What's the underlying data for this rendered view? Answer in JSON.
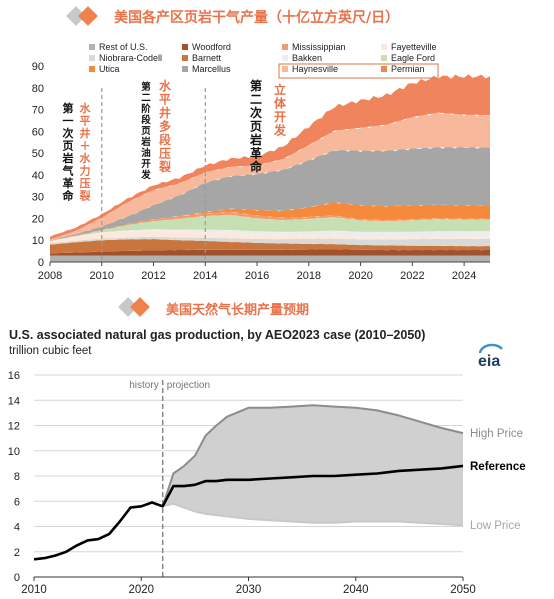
{
  "banner1": {
    "text": "美国各产区页岩干气产量（十亿立方英尺/日）",
    "color_gray": "#c8c8c8",
    "color_orange": "#f0814c"
  },
  "banner2": {
    "text": "美国天然气长期产量预期"
  },
  "chart1_notes": [
    {
      "text": "第一次页岩气革命",
      "color": "#111111"
    },
    {
      "text": "水平井＋水力压裂",
      "color": "#e8734a"
    },
    {
      "text": "第二阶段页岩油开发",
      "color": "#111111"
    },
    {
      "text": "水平井多段压裂",
      "color": "#e8734a"
    },
    {
      "text": "第二次页岩革命",
      "color": "#111111"
    },
    {
      "text": "立体开发",
      "color": "#e8734a"
    }
  ],
  "chart2": {
    "title": "U.S. associated natural gas production, by AEO2023 case (2010–2050)",
    "unit": "trillion cubic feet",
    "logo": "eia",
    "history_label": "history",
    "projection_label": "projection",
    "divider_x": 2022
  },
  "chart_data": [
    {
      "type": "area",
      "title": "美国各产区页岩干气产量（十亿立方英尺/日）",
      "xlim": [
        2008,
        2025
      ],
      "ylim": [
        0,
        90
      ],
      "x_ticks": [
        2008,
        2010,
        2012,
        2014,
        2016,
        2018,
        2020,
        2022,
        2024
      ],
      "y_ticks": [
        0,
        10,
        20,
        30,
        40,
        50,
        60,
        70,
        80,
        90
      ],
      "grid": false,
      "legend_position": "top",
      "legend": [
        {
          "name": "Rest of U.S.",
          "color": "#b2b2b2"
        },
        {
          "name": "Woodford",
          "color": "#a0522d"
        },
        {
          "name": "Mississippian",
          "color": "#f29a70"
        },
        {
          "name": "Fayetteville",
          "color": "#fde9dc"
        },
        {
          "name": "Niobrara-Codell",
          "color": "#d9d9d9"
        },
        {
          "name": "Barnett",
          "color": "#c9753d"
        },
        {
          "name": "Bakken",
          "color": "#ededed"
        },
        {
          "name": "Eagle Ford",
          "color": "#c6e0b4"
        },
        {
          "name": "Utica",
          "color": "#f58a3c"
        },
        {
          "name": "Marcellus",
          "color": "#a6a6a6"
        },
        {
          "name": "Haynesville",
          "color": "#f8b89b"
        },
        {
          "name": "Permian",
          "color": "#ef845d"
        }
      ],
      "legend_boxed": [
        "Haynesville",
        "Permian"
      ],
      "x": [
        2008,
        2009,
        2010,
        2011,
        2012,
        2013,
        2014,
        2015,
        2016,
        2017,
        2018,
        2019,
        2020,
        2021,
        2022,
        2023,
        2024,
        2025
      ],
      "series": [
        {
          "name": "Rest of U.S.",
          "values": [
            3,
            3,
            3,
            3,
            3,
            3,
            3,
            3,
            3,
            3,
            3,
            3,
            3,
            3,
            3,
            3,
            3,
            3
          ]
        },
        {
          "name": "Woodford",
          "values": [
            1,
            1.3,
            1.8,
            2.1,
            2.4,
            2.5,
            2.6,
            2.6,
            2.6,
            2.6,
            2.7,
            2.8,
            2.6,
            2.5,
            2.5,
            2.5,
            2.5,
            2.5
          ]
        },
        {
          "name": "Barnett",
          "values": [
            4,
            4.8,
            5.2,
            5.3,
            5.1,
            4.5,
            4.1,
            3.6,
            3.2,
            2.9,
            2.6,
            2.4,
            2.2,
            2.1,
            2.0,
            1.9,
            1.8,
            1.8
          ]
        },
        {
          "name": "Niobrara-Codell",
          "values": [
            0.6,
            0.7,
            0.8,
            0.9,
            1.1,
            1.3,
            1.5,
            1.7,
            1.8,
            2.0,
            2.3,
            2.6,
            2.6,
            2.8,
            3.0,
            3.2,
            3.3,
            3.3
          ]
        },
        {
          "name": "Fayetteville",
          "values": [
            1.0,
            1.8,
            2.5,
            2.8,
            2.8,
            2.7,
            2.5,
            2.3,
            2.0,
            1.7,
            1.5,
            1.3,
            1.1,
            1.0,
            0.9,
            0.9,
            0.8,
            0.8
          ]
        },
        {
          "name": "Bakken",
          "values": [
            0.1,
            0.2,
            0.3,
            0.4,
            0.6,
            0.9,
            1.2,
            1.5,
            1.5,
            1.6,
            1.9,
            2.3,
            2.3,
            2.4,
            2.5,
            2.6,
            2.7,
            2.7
          ]
        },
        {
          "name": "Eagle Ford",
          "values": [
            0,
            0.2,
            0.9,
            2.5,
            3.8,
            5.0,
            6.2,
            6.9,
            6.0,
            5.5,
            5.8,
            6.2,
            5.3,
            5.0,
            5.3,
            5.5,
            5.4,
            5.4
          ]
        },
        {
          "name": "Mississippian",
          "values": [
            0.1,
            0.2,
            0.3,
            0.5,
            0.8,
            1.1,
            1.3,
            1.4,
            1.2,
            1.0,
            0.9,
            0.8,
            0.6,
            0.5,
            0.5,
            0.4,
            0.4,
            0.4
          ]
        },
        {
          "name": "Utica",
          "values": [
            0,
            0,
            0,
            0,
            0,
            0.1,
            0.5,
            1.5,
            2.6,
            3.2,
            4.5,
            6.0,
            6.4,
            6.3,
            6.4,
            6.3,
            6.2,
            6.1
          ]
        },
        {
          "name": "Marcellus",
          "values": [
            0.2,
            0.6,
            1.5,
            3.4,
            6.5,
            9.5,
            13.5,
            15.0,
            16.5,
            18.8,
            21.5,
            24.0,
            25.0,
            25.5,
            26.0,
            26.3,
            26.6,
            26.5
          ]
        },
        {
          "name": "Haynesville",
          "values": [
            0.3,
            1.5,
            4.0,
            6.5,
            7.0,
            5.5,
            4.8,
            4.3,
            4.0,
            5.0,
            7.0,
            9.0,
            10.5,
            12.0,
            14.5,
            16.0,
            15.0,
            15.0
          ]
        },
        {
          "name": "Permian",
          "values": [
            1.4,
            1.5,
            1.6,
            1.7,
            2.1,
            2.5,
            3.1,
            3.7,
            4.1,
            5.7,
            8.5,
            11.0,
            12.5,
            13.5,
            15.5,
            16.5,
            17.5,
            17.8
          ]
        }
      ],
      "dashed_markers_x": [
        2010,
        2014
      ],
      "annotations": [
        "第一次页岩气革命",
        "水平井＋水力压裂",
        "第二阶段页岩油开发",
        "水平井多段压裂",
        "第二次页岩革命",
        "立体开发"
      ]
    },
    {
      "type": "line",
      "title": "U.S. associated natural gas production, by AEO2023 case (2010–2050)",
      "ylabel": "trillion cubic feet",
      "xlim": [
        2010,
        2050
      ],
      "ylim": [
        0,
        16
      ],
      "x_ticks": [
        2010,
        2020,
        2030,
        2040,
        2050
      ],
      "y_ticks": [
        0,
        2,
        4,
        6,
        8,
        10,
        12,
        14,
        16
      ],
      "grid": true,
      "series": [
        {
          "name": "Reference",
          "x": [
            2010,
            2011,
            2012,
            2013,
            2014,
            2015,
            2016,
            2017,
            2018,
            2019,
            2020,
            2021,
            2022,
            2023,
            2024,
            2025,
            2026,
            2027,
            2028,
            2030,
            2032,
            2034,
            2036,
            2038,
            2040,
            2042,
            2044,
            2046,
            2048,
            2050
          ],
          "values": [
            1.4,
            1.5,
            1.7,
            2.0,
            2.5,
            2.9,
            3.0,
            3.4,
            4.4,
            5.5,
            5.6,
            5.9,
            5.6,
            7.2,
            7.2,
            7.3,
            7.6,
            7.6,
            7.7,
            7.7,
            7.8,
            7.9,
            8.0,
            8.0,
            8.1,
            8.2,
            8.4,
            8.5,
            8.6,
            8.8
          ]
        },
        {
          "name": "High Price",
          "x": [
            2022,
            2023,
            2024,
            2025,
            2026,
            2027,
            2028,
            2030,
            2032,
            2034,
            2036,
            2038,
            2040,
            2042,
            2044,
            2046,
            2048,
            2050
          ],
          "values": [
            5.6,
            8.2,
            8.8,
            9.6,
            11.2,
            12.0,
            12.7,
            13.4,
            13.4,
            13.5,
            13.6,
            13.5,
            13.4,
            13.2,
            12.8,
            12.3,
            11.8,
            11.4
          ]
        },
        {
          "name": "Low Price",
          "x": [
            2022,
            2023,
            2024,
            2025,
            2026,
            2028,
            2030,
            2032,
            2034,
            2036,
            2038,
            2040,
            2042,
            2044,
            2046,
            2048,
            2050
          ],
          "values": [
            5.6,
            5.8,
            5.5,
            5.2,
            5.0,
            4.8,
            4.6,
            4.5,
            4.4,
            4.3,
            4.3,
            4.4,
            4.4,
            4.4,
            4.3,
            4.2,
            4.1
          ]
        }
      ]
    }
  ]
}
